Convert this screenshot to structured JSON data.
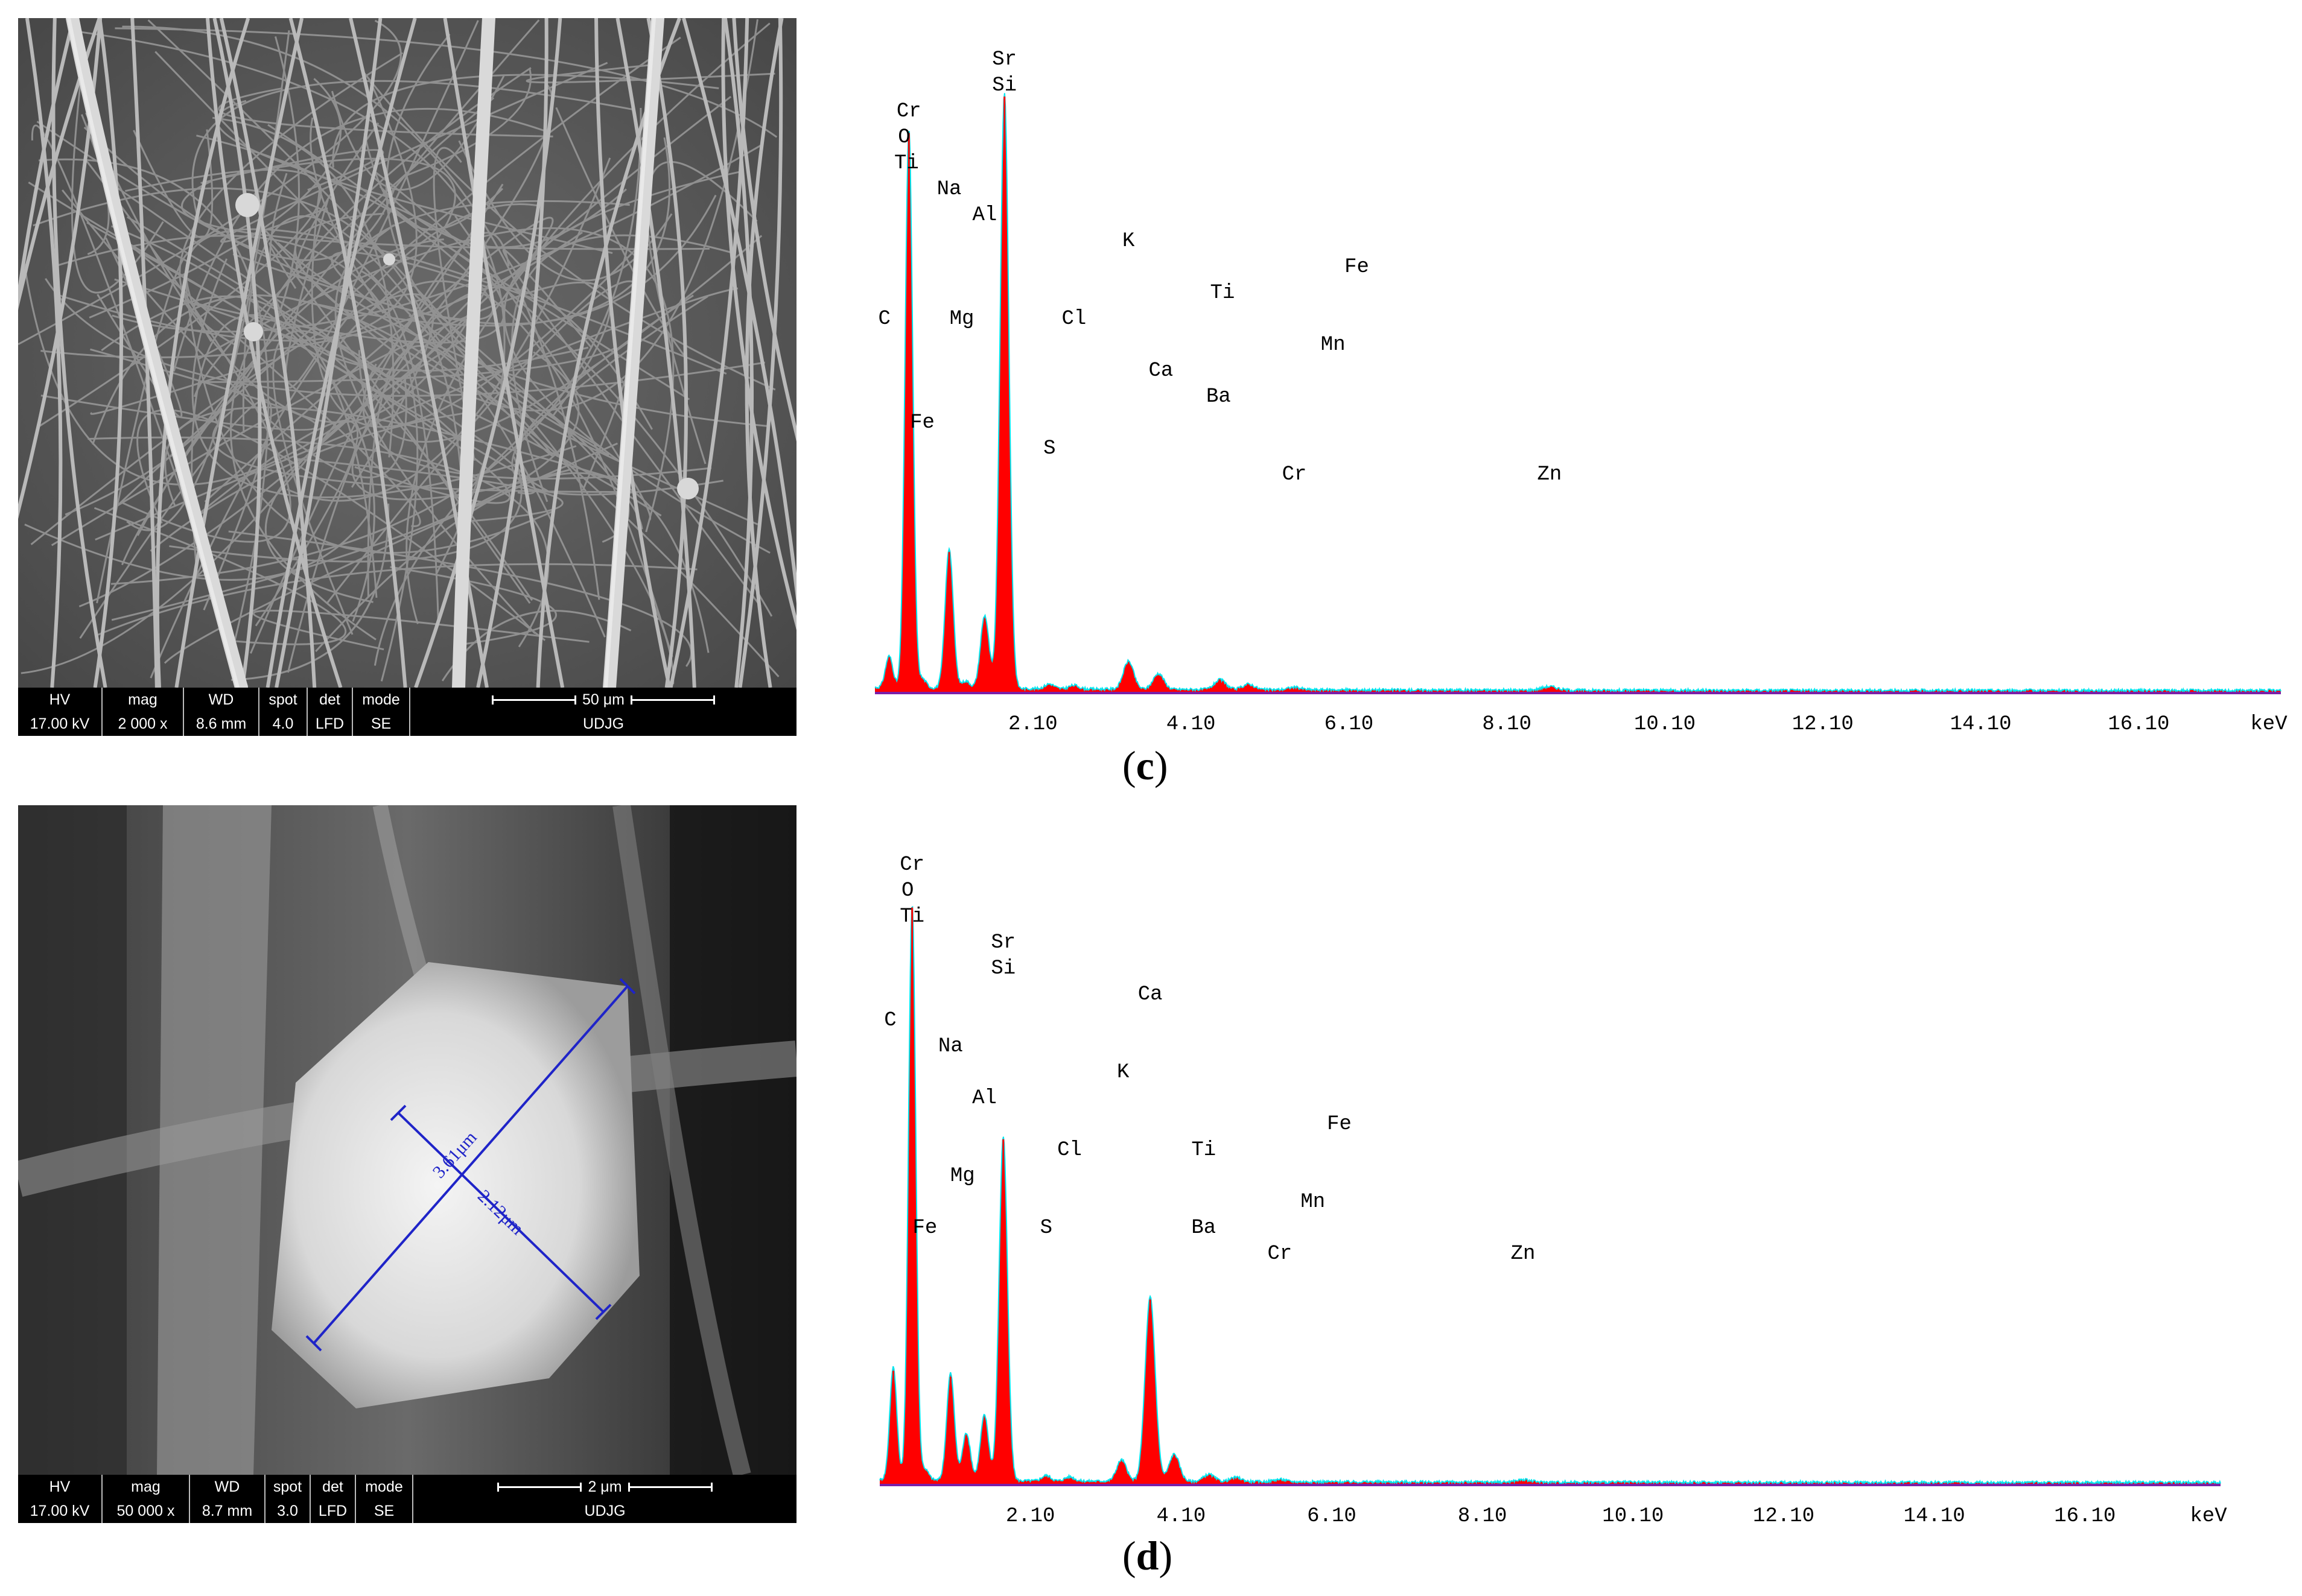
{
  "panels": [
    {
      "label_open": "(",
      "label_letter": "c",
      "label_close": ")",
      "sem": {
        "hv_label": "HV",
        "hv_value": "17.00 kV",
        "mag_label": "mag",
        "mag_value": "2 000 x",
        "wd_label": "WD",
        "wd_value": "8.6 mm",
        "spot_label": "spot",
        "spot_value": "4.0",
        "det_label": "det",
        "det_value": "LFD",
        "mode_label": "mode",
        "mode_value": "SE",
        "scale_label": "50 μm",
        "lab_name": "UDJG"
      }
    },
    {
      "label_open": "(",
      "label_letter": "d",
      "label_close": ")",
      "sem": {
        "hv_label": "HV",
        "hv_value": "17.00 kV",
        "mag_label": "mag",
        "mag_value": "50 000 x",
        "wd_label": "WD",
        "wd_value": "8.7 mm",
        "spot_label": "spot",
        "spot_value": "3.0",
        "det_label": "det",
        "det_value": "LFD",
        "mode_label": "mode",
        "mode_value": "SE",
        "scale_label": "2 μm",
        "lab_name": "UDJG",
        "measure_1": "3.61μm",
        "measure_2": "2.12μm"
      }
    }
  ],
  "chart_data": [
    {
      "type": "line",
      "xlabel": "keV",
      "xlim": [
        0.1,
        17.9
      ],
      "xticks": [
        "2.10",
        "4.10",
        "6.10",
        "8.10",
        "10.10",
        "12.10",
        "14.10",
        "16.10"
      ],
      "ylim": [
        0,
        100
      ],
      "colors": {
        "fill": "#ff0000",
        "outline": "#00e5ee",
        "baseline": "#7a1fa8"
      },
      "peaks": [
        {
          "x": 0.28,
          "y": 5.2
        },
        {
          "x": 0.53,
          "y": 92
        },
        {
          "x": 0.7,
          "y": 1.5
        },
        {
          "x": 1.04,
          "y": 23
        },
        {
          "x": 1.25,
          "y": 1.2
        },
        {
          "x": 1.49,
          "y": 12
        },
        {
          "x": 1.74,
          "y": 98
        },
        {
          "x": 2.31,
          "y": 0.8
        },
        {
          "x": 2.62,
          "y": 0.6
        },
        {
          "x": 3.31,
          "y": 4.6
        },
        {
          "x": 3.69,
          "y": 2.6
        },
        {
          "x": 4.47,
          "y": 1.6
        },
        {
          "x": 4.83,
          "y": 0.9
        },
        {
          "x": 5.41,
          "y": 0.4
        },
        {
          "x": 8.64,
          "y": 0.6
        }
      ],
      "annotations": [
        {
          "text": "Sr",
          "x": 1.74,
          "row": 0
        },
        {
          "text": "Si",
          "x": 1.74,
          "row": 1
        },
        {
          "text": "Cr",
          "x": 0.53,
          "row": 2
        },
        {
          "text": "O",
          "x": 0.47,
          "row": 3
        },
        {
          "text": "Ti",
          "x": 0.5,
          "row": 4
        },
        {
          "text": "Na",
          "x": 1.04,
          "row": 5
        },
        {
          "text": "Al",
          "x": 1.49,
          "row": 6
        },
        {
          "text": "K",
          "x": 3.31,
          "row": 7
        },
        {
          "text": "Fe",
          "x": 6.2,
          "row": 8
        },
        {
          "text": "Ti",
          "x": 4.5,
          "row": 9
        },
        {
          "text": "C",
          "x": 0.22,
          "row": 10
        },
        {
          "text": "Mg",
          "x": 1.2,
          "row": 10
        },
        {
          "text": "Cl",
          "x": 2.62,
          "row": 10
        },
        {
          "text": "Mn",
          "x": 5.9,
          "row": 11
        },
        {
          "text": "Ca",
          "x": 3.72,
          "row": 12
        },
        {
          "text": "Ba",
          "x": 4.45,
          "row": 13
        },
        {
          "text": "Fe",
          "x": 0.7,
          "row": 14
        },
        {
          "text": "S",
          "x": 2.31,
          "row": 15
        },
        {
          "text": "Cr",
          "x": 5.41,
          "row": 16
        },
        {
          "text": "Zn",
          "x": 8.64,
          "row": 16
        }
      ]
    },
    {
      "type": "line",
      "xlabel": "keV",
      "xlim": [
        0.1,
        17.9
      ],
      "xticks": [
        "2.10",
        "4.10",
        "6.10",
        "8.10",
        "10.10",
        "12.10",
        "14.10",
        "16.10"
      ],
      "ylim": [
        0,
        100
      ],
      "colors": {
        "fill": "#ff0000",
        "outline": "#00e5ee",
        "baseline": "#7a1fa8"
      },
      "peaks": [
        {
          "x": 0.28,
          "y": 19
        },
        {
          "x": 0.53,
          "y": 97
        },
        {
          "x": 0.7,
          "y": 1.8
        },
        {
          "x": 1.04,
          "y": 18
        },
        {
          "x": 1.25,
          "y": 8
        },
        {
          "x": 1.49,
          "y": 11
        },
        {
          "x": 1.74,
          "y": 58
        },
        {
          "x": 2.31,
          "y": 0.9
        },
        {
          "x": 2.62,
          "y": 0.7
        },
        {
          "x": 3.31,
          "y": 3.6
        },
        {
          "x": 3.69,
          "y": 31
        },
        {
          "x": 4.01,
          "y": 4.6
        },
        {
          "x": 4.47,
          "y": 1.2
        },
        {
          "x": 4.83,
          "y": 0.7
        },
        {
          "x": 5.41,
          "y": 0.4
        },
        {
          "x": 8.64,
          "y": 0.4
        }
      ],
      "annotations": [
        {
          "text": "Cr",
          "x": 0.53,
          "row": 0
        },
        {
          "text": "O",
          "x": 0.47,
          "row": 1
        },
        {
          "text": "Ti",
          "x": 0.53,
          "row": 2
        },
        {
          "text": "Sr",
          "x": 1.74,
          "row": 3
        },
        {
          "text": "Si",
          "x": 1.74,
          "row": 4
        },
        {
          "text": "Ca",
          "x": 3.69,
          "row": 5
        },
        {
          "text": "C",
          "x": 0.24,
          "row": 6
        },
        {
          "text": "Na",
          "x": 1.04,
          "row": 7
        },
        {
          "text": "K",
          "x": 3.33,
          "row": 8
        },
        {
          "text": "Al",
          "x": 1.49,
          "row": 9
        },
        {
          "text": "Fe",
          "x": 6.2,
          "row": 10
        },
        {
          "text": "Cl",
          "x": 2.62,
          "row": 11
        },
        {
          "text": "Ti",
          "x": 4.4,
          "row": 11
        },
        {
          "text": "Mg",
          "x": 1.2,
          "row": 12
        },
        {
          "text": "Mn",
          "x": 5.85,
          "row": 13
        },
        {
          "text": "Fe",
          "x": 0.7,
          "row": 14
        },
        {
          "text": "S",
          "x": 2.31,
          "row": 14
        },
        {
          "text": "Ba",
          "x": 4.4,
          "row": 14
        },
        {
          "text": "Cr",
          "x": 5.41,
          "row": 15
        },
        {
          "text": "Zn",
          "x": 8.64,
          "row": 15
        }
      ]
    }
  ]
}
